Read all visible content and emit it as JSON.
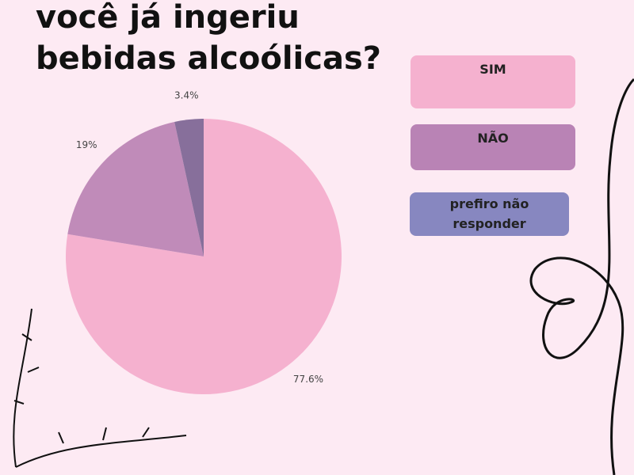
{
  "chart_data": {
    "type": "pie",
    "title": "você já ingeriu bebidas alcoólicas?",
    "categories": [
      "SIM",
      "NÃO",
      "prefiro não responder"
    ],
    "values": [
      77.6,
      19,
      3.4
    ],
    "value_labels": [
      "77.6%",
      "19%",
      "3.4%"
    ],
    "colors": [
      "#f5b1cf",
      "#c08bb9",
      "#876f9b"
    ],
    "legend_colors": [
      "#f5b1cf",
      "#b983b5",
      "#8787c0"
    ]
  }
}
